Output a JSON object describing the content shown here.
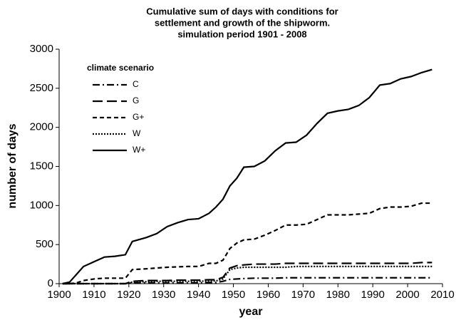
{
  "chart_data": {
    "type": "line",
    "title": [
      "Cumulative sum of days with conditions for",
      "settlement and growth of the shipworm.",
      "simulation period 1901 - 2008"
    ],
    "x_label": "year",
    "y_label": "number of days",
    "legend_title": "climate scenario",
    "legend": "upper left",
    "x": [
      1901,
      1903,
      1905,
      1907,
      1910,
      1913,
      1916,
      1919,
      1921,
      1925,
      1928,
      1931,
      1934,
      1937,
      1940,
      1943,
      1945,
      1947,
      1949,
      1951,
      1953,
      1956,
      1959,
      1962,
      1965,
      1968,
      1971,
      1974,
      1977,
      1980,
      1983,
      1986,
      1989,
      1992,
      1995,
      1998,
      2001,
      2004,
      2007
    ],
    "series": [
      {
        "name": "C",
        "color": "#000000",
        "dash": "10,4,2,4",
        "values": [
          0,
          0,
          0,
          0,
          0,
          0,
          0,
          0,
          10,
          10,
          10,
          10,
          10,
          10,
          10,
          15,
          15,
          30,
          55,
          60,
          65,
          70,
          70,
          70,
          75,
          75,
          75,
          75,
          75,
          75,
          75,
          75,
          75,
          75,
          75,
          75,
          75,
          75,
          75
        ]
      },
      {
        "name": "G",
        "color": "#000000",
        "dash": "14,6",
        "values": [
          0,
          0,
          0,
          0,
          0,
          0,
          0,
          0,
          30,
          40,
          40,
          40,
          45,
          45,
          45,
          50,
          50,
          80,
          200,
          230,
          240,
          250,
          250,
          250,
          260,
          260,
          260,
          260,
          260,
          260,
          260,
          260,
          260,
          260,
          260,
          260,
          260,
          270,
          270
        ]
      },
      {
        "name": "G+",
        "color": "#000000",
        "dash": "6,4",
        "values": [
          0,
          0,
          10,
          40,
          60,
          70,
          70,
          70,
          180,
          190,
          200,
          210,
          215,
          220,
          220,
          260,
          260,
          300,
          450,
          520,
          560,
          570,
          620,
          680,
          750,
          750,
          760,
          820,
          880,
          880,
          880,
          890,
          900,
          960,
          980,
          980,
          990,
          1030,
          1030
        ]
      },
      {
        "name": "W",
        "color": "#000000",
        "dash": "2,2",
        "values": [
          0,
          0,
          0,
          0,
          0,
          0,
          0,
          0,
          20,
          25,
          30,
          30,
          30,
          30,
          30,
          35,
          35,
          60,
          180,
          200,
          210,
          210,
          210,
          210,
          210,
          220,
          220,
          220,
          220,
          220,
          220,
          220,
          220,
          220,
          220,
          220,
          220,
          220,
          220
        ]
      },
      {
        "name": "W+",
        "color": "#000000",
        "dash": "none",
        "values": [
          0,
          20,
          120,
          220,
          280,
          340,
          350,
          370,
          540,
          590,
          640,
          730,
          780,
          820,
          830,
          900,
          980,
          1080,
          1250,
          1350,
          1490,
          1500,
          1570,
          1700,
          1800,
          1810,
          1900,
          2050,
          2180,
          2210,
          2230,
          2280,
          2380,
          2540,
          2560,
          2620,
          2650,
          2700,
          2740
        ]
      }
    ],
    "xlim": [
      1900,
      2010
    ],
    "xticks": [
      1900,
      1910,
      1920,
      1930,
      1940,
      1950,
      1960,
      1970,
      1980,
      1990,
      2000,
      2010
    ],
    "ylim": [
      0,
      3000
    ],
    "yticks": [
      0,
      500,
      1000,
      1500,
      2000,
      2500,
      3000
    ],
    "grid": false
  }
}
